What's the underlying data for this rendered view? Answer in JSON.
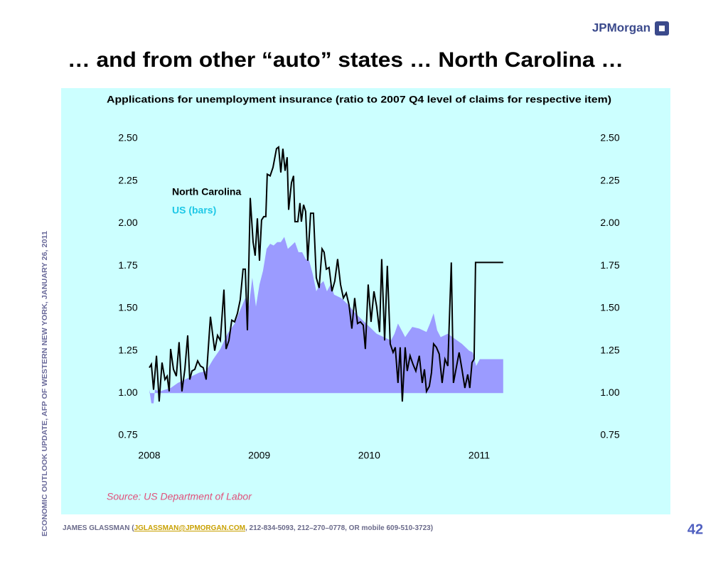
{
  "header": {
    "logo": "JPMorgan",
    "title": "… and from other “auto” states … North Carolina …"
  },
  "side_note": "ECONOMIC OUTLOOK UPDATE, AFP OF WESTERN NEW YORK, JANUARY 26, 2011",
  "footer": {
    "before": "JAMES GLASSMAN (",
    "email": "JGLASSMAN@JPMORGAN.COM",
    "after": ", 212-834-5093, 212–270–0778, OR mobile 609-510-3723)",
    "page": "42"
  },
  "chart_data": {
    "type": "line-area",
    "title": "Applications for unemployment insurance (ratio to 2007 Q4 level of claims for respective item)",
    "source": "Source: US Department of Labor",
    "xlim": [
      2008,
      2011.22
    ],
    "xticks": [
      2008,
      2009,
      2010,
      2011
    ],
    "ylim": [
      0.75,
      2.5
    ],
    "yticks": [
      {
        "value": 0.75,
        "label": "0.75"
      },
      {
        "value": 1,
        "label": "1.00"
      },
      {
        "value": 1.25,
        "label": "1.25"
      },
      {
        "value": 1.5,
        "label": "1.50"
      },
      {
        "value": 1.75,
        "label": "1.75"
      },
      {
        "value": 2,
        "label": "2.00"
      },
      {
        "value": 2.25,
        "label": "2.25"
      },
      {
        "value": 2.5,
        "label": "2.50"
      }
    ],
    "y2lim": [
      0.75,
      2.5
    ],
    "y2ticks": [
      {
        "value": 0.75,
        "label": "0.75"
      },
      {
        "value": 1,
        "label": "1.00"
      },
      {
        "value": 1.25,
        "label": "1.25"
      },
      {
        "value": 1.5,
        "label": "1.50"
      },
      {
        "value": 1.75,
        "label": "1.75"
      },
      {
        "value": 2,
        "label": "2.00"
      },
      {
        "value": 2.25,
        "label": "2.25"
      },
      {
        "value": 2.5,
        "label": "2.50"
      }
    ],
    "grid": false,
    "baseline": 1,
    "series": [
      {
        "name": "US (bars)",
        "kind": "area",
        "color": "#9b9bff",
        "label_color": "#1ec8e6",
        "x": [
          2008.0,
          2008.019,
          2008.039,
          2008.052,
          2008.097,
          2008.142,
          2008.194,
          2008.259,
          2008.323,
          2008.388,
          2008.452,
          2008.517,
          2008.582,
          2008.646,
          2008.711,
          2008.776,
          2008.84,
          2008.873,
          2008.905,
          2008.937,
          2008.97,
          2009.002,
          2009.034,
          2009.067,
          2009.099,
          2009.131,
          2009.164,
          2009.196,
          2009.228,
          2009.26,
          2009.293,
          2009.325,
          2009.357,
          2009.39,
          2009.422,
          2009.454,
          2009.487,
          2009.519,
          2009.551,
          2009.584,
          2009.616,
          2009.648,
          2009.681,
          2009.745,
          2009.81,
          2009.875,
          2009.939,
          2010.004,
          2010.068,
          2010.133,
          2010.198,
          2010.23,
          2010.262,
          2010.295,
          2010.327,
          2010.359,
          2010.392,
          2010.456,
          2010.521,
          2010.553,
          2010.586,
          2010.618,
          2010.65,
          2010.715,
          2010.779,
          2010.844,
          2010.876,
          2010.909,
          2010.941,
          2010.973,
          2011.006,
          2011.219
        ],
        "values": [
          1.02,
          0.94,
          0.94,
          1.02,
          1.01,
          1.02,
          1.03,
          1.06,
          1.08,
          1.1,
          1.12,
          1.13,
          1.2,
          1.26,
          1.35,
          1.41,
          1.51,
          1.56,
          1.51,
          1.68,
          1.51,
          1.64,
          1.72,
          1.85,
          1.88,
          1.87,
          1.89,
          1.89,
          1.92,
          1.85,
          1.87,
          1.89,
          1.83,
          1.83,
          1.79,
          1.78,
          1.7,
          1.6,
          1.64,
          1.66,
          1.6,
          1.64,
          1.58,
          1.56,
          1.52,
          1.47,
          1.43,
          1.39,
          1.35,
          1.33,
          1.31,
          1.35,
          1.41,
          1.37,
          1.33,
          1.36,
          1.39,
          1.38,
          1.36,
          1.41,
          1.47,
          1.37,
          1.33,
          1.35,
          1.32,
          1.29,
          1.27,
          1.25,
          1.24,
          1.16,
          1.2,
          1.2
        ]
      },
      {
        "name": "North Carolina",
        "kind": "line",
        "color": "#000000",
        "label_color": "#000000",
        "x": [
          2008.0,
          2008.019,
          2008.039,
          2008.065,
          2008.09,
          2008.116,
          2008.142,
          2008.162,
          2008.181,
          2008.194,
          2008.22,
          2008.246,
          2008.271,
          2008.297,
          2008.323,
          2008.349,
          2008.368,
          2008.388,
          2008.414,
          2008.44,
          2008.465,
          2008.491,
          2008.517,
          2008.556,
          2008.595,
          2008.621,
          2008.646,
          2008.679,
          2008.698,
          2008.724,
          2008.75,
          2008.776,
          2008.802,
          2008.827,
          2008.853,
          2008.873,
          2008.892,
          2008.918,
          2008.944,
          2008.963,
          2008.983,
          2009.002,
          2009.021,
          2009.041,
          2009.06,
          2009.073,
          2009.099,
          2009.125,
          2009.157,
          2009.176,
          2009.196,
          2009.215,
          2009.235,
          2009.254,
          2009.267,
          2009.293,
          2009.312,
          2009.325,
          2009.351,
          2009.37,
          2009.383,
          2009.403,
          2009.422,
          2009.441,
          2009.467,
          2009.493,
          2009.519,
          2009.545,
          2009.571,
          2009.59,
          2009.61,
          2009.635,
          2009.661,
          2009.687,
          2009.713,
          2009.739,
          2009.765,
          2009.791,
          2009.816,
          2009.842,
          2009.868,
          2009.894,
          2009.92,
          2009.946,
          2009.965,
          2009.991,
          2010.017,
          2010.043,
          2010.068,
          2010.094,
          2010.114,
          2010.14,
          2010.165,
          2010.191,
          2010.217,
          2010.237,
          2010.262,
          2010.282,
          2010.301,
          2010.327,
          2010.346,
          2010.372,
          2010.398,
          2010.424,
          2010.456,
          2010.482,
          2010.502,
          2010.521,
          2010.547,
          2010.566,
          2010.586,
          2010.611,
          2010.637,
          2010.663,
          2010.689,
          2010.715,
          2010.747,
          2010.766,
          2010.792,
          2010.818,
          2010.844,
          2010.87,
          2010.896,
          2010.915,
          2010.935,
          2010.954,
          2010.967,
          2011.219
        ],
        "values": [
          1.15,
          1.17,
          1.02,
          1.22,
          0.95,
          1.18,
          1.08,
          1.1,
          1.01,
          1.26,
          1.14,
          1.1,
          1.3,
          1.01,
          1.14,
          1.34,
          1.08,
          1.13,
          1.14,
          1.19,
          1.16,
          1.15,
          1.08,
          1.45,
          1.25,
          1.34,
          1.31,
          1.61,
          1.26,
          1.31,
          1.43,
          1.42,
          1.47,
          1.55,
          1.73,
          1.73,
          1.37,
          2.15,
          1.89,
          1.81,
          2.03,
          1.78,
          2.02,
          2.04,
          2.04,
          2.29,
          2.28,
          2.33,
          2.44,
          2.45,
          2.3,
          2.44,
          2.31,
          2.39,
          2.08,
          2.24,
          2.28,
          2.01,
          2.01,
          2.12,
          2.01,
          2.11,
          2.07,
          1.78,
          2.06,
          2.06,
          1.68,
          1.62,
          1.85,
          1.83,
          1.73,
          1.74,
          1.6,
          1.66,
          1.79,
          1.64,
          1.56,
          1.59,
          1.52,
          1.38,
          1.56,
          1.41,
          1.42,
          1.4,
          1.26,
          1.64,
          1.42,
          1.6,
          1.51,
          1.36,
          1.79,
          1.31,
          1.75,
          1.29,
          1.24,
          1.27,
          1.06,
          1.27,
          0.95,
          1.27,
          1.13,
          1.22,
          1.17,
          1.13,
          1.22,
          1.06,
          1.14,
          1.01,
          1.04,
          1.12,
          1.29,
          1.27,
          1.23,
          1.06,
          1.2,
          1.16,
          1.77,
          1.06,
          1.15,
          1.24,
          1.14,
          1.03,
          1.11,
          1.03,
          1.18,
          1.2,
          1.77,
          1.77
        ]
      }
    ]
  }
}
